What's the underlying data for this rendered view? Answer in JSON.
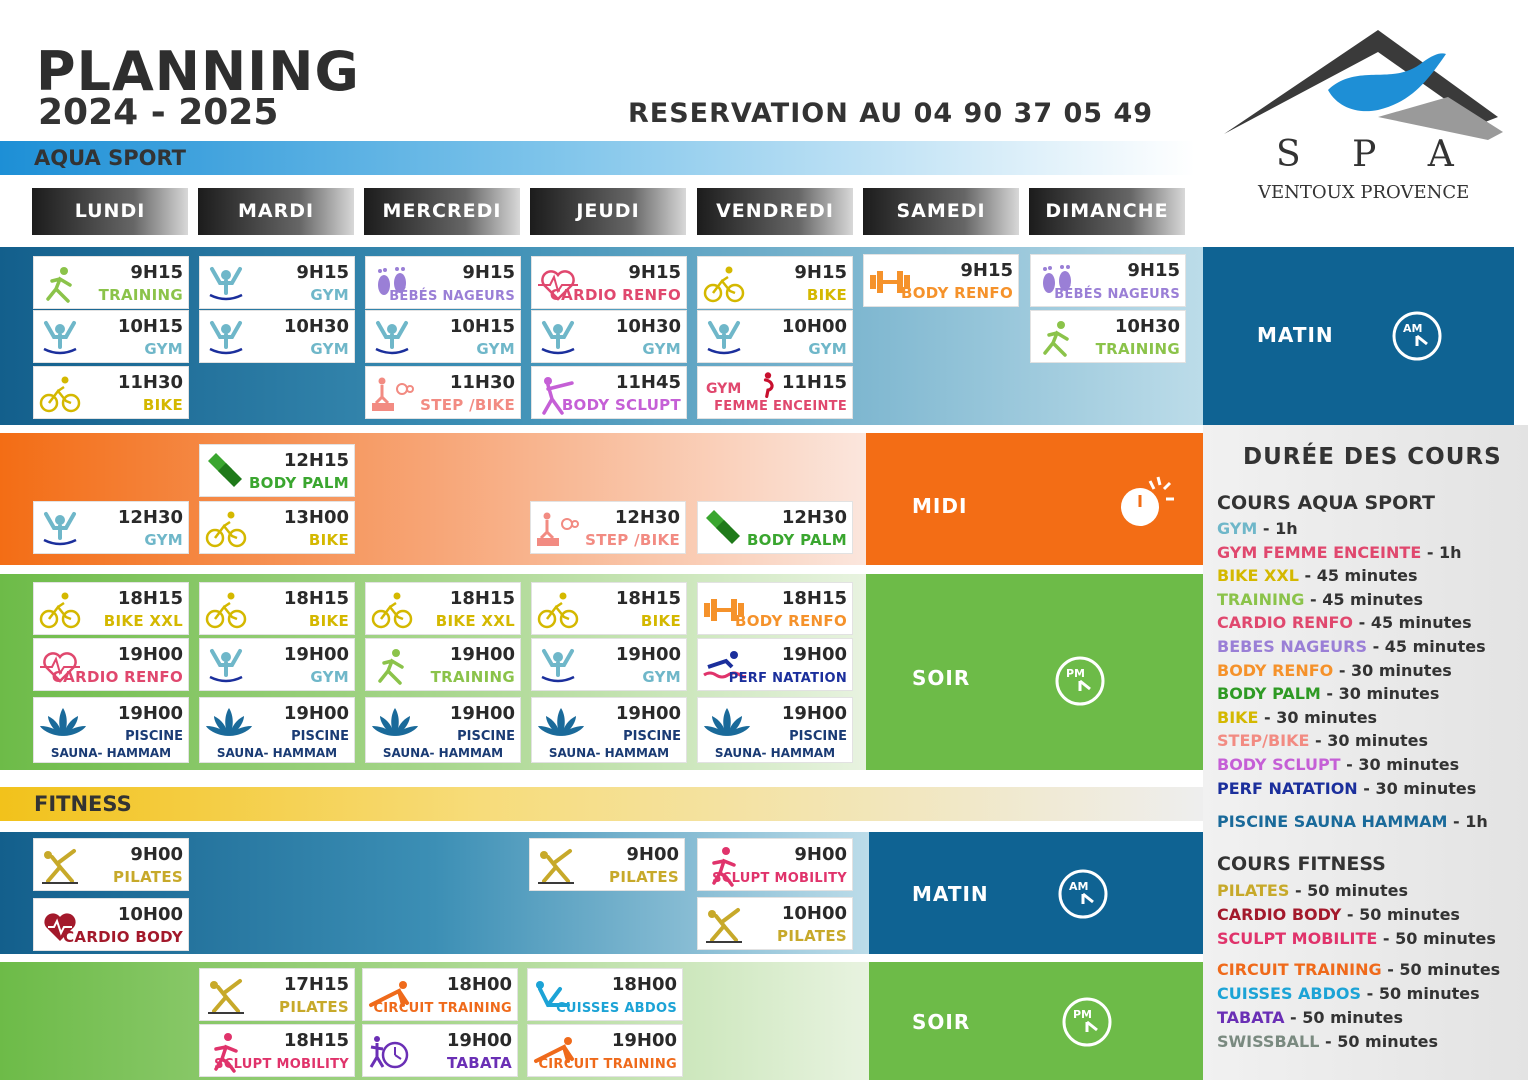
{
  "header": {
    "title": "PLANNING",
    "years": "2024 - 2025",
    "reservation": "RESERVATION AU 04 90 37 05 49"
  },
  "logo": {
    "name": "S P A",
    "tagline": "VENTOUX PROVENCE"
  },
  "sections": {
    "aqua": "AQUA SPORT",
    "fitness": "FITNESS"
  },
  "days": [
    "LUNDI",
    "MARDI",
    "MERCREDI",
    "JEUDI",
    "VENDREDI",
    "SAMEDI",
    "DIMANCHE"
  ],
  "periods": {
    "matin": "MATIN",
    "midi": "MIDI",
    "soir": "SOIR",
    "matin2": "MATIN",
    "soir2": "SOIR"
  },
  "clock": {
    "am": "AM",
    "pm": "PM"
  },
  "aqua_cards": [
    {
      "time": "9H15",
      "name": "TRAINING",
      "icon": "runner-icon",
      "color": "#8bc34a"
    },
    {
      "time": "10H15",
      "name": "GYM",
      "icon": "aqua-gym-icon",
      "color": "#6fb7c9"
    },
    {
      "time": "11H30",
      "name": "BIKE",
      "icon": "bike-icon",
      "color": "#d4b800"
    },
    {
      "time": "9H15",
      "name": "GYM",
      "icon": "aqua-gym-icon",
      "color": "#6fb7c9"
    },
    {
      "time": "10H30",
      "name": "GYM",
      "icon": "aqua-gym-icon",
      "color": "#6fb7c9"
    },
    {
      "time": "9H15",
      "name": "BÉBÉS NAGEURS",
      "icon": "baby-feet-icon",
      "color": "#9a7fd6"
    },
    {
      "time": "10H15",
      "name": "GYM",
      "icon": "aqua-gym-icon",
      "color": "#6fb7c9"
    },
    {
      "time": "11H30",
      "name": "STEP /BIKE",
      "icon": "step-bike-icon",
      "color": "#f28b82"
    },
    {
      "time": "9H15",
      "name": "CARDIO RENFO",
      "icon": "heart-pulse-icon",
      "color": "#e0486e"
    },
    {
      "time": "10H30",
      "name": "GYM",
      "icon": "aqua-gym-icon",
      "color": "#6fb7c9"
    },
    {
      "time": "11H45",
      "name": "BODY SCLUPT",
      "icon": "stretch-icon",
      "color": "#c55fd6"
    },
    {
      "time": "9H15",
      "name": "BIKE",
      "icon": "bike-icon",
      "color": "#d4b800"
    },
    {
      "time": "10H00",
      "name": "GYM",
      "icon": "aqua-gym-icon",
      "color": "#6fb7c9"
    },
    {
      "time": "11H15",
      "name": "FEMME ENCEINTE",
      "prefix": "GYM",
      "icon": "pregnant-icon",
      "color": "#e0486e"
    },
    {
      "time": "9H15",
      "name": "BODY RENFO",
      "icon": "dumbbell-icon",
      "color": "#f5922b"
    },
    {
      "time": "9H15",
      "name": "BÉBÉS NAGEURS",
      "icon": "baby-feet-icon",
      "color": "#9a7fd6"
    },
    {
      "time": "10H30",
      "name": "TRAINING",
      "icon": "runner-icon",
      "color": "#8bc34a"
    },
    {
      "time": "12H15",
      "name": "BODY PALM",
      "icon": "fins-icon",
      "color": "#3aa62f"
    },
    {
      "time": "12H30",
      "name": "GYM",
      "icon": "aqua-gym-icon",
      "color": "#6fb7c9"
    },
    {
      "time": "13H00",
      "name": "BIKE",
      "icon": "bike-icon",
      "color": "#d4b800"
    },
    {
      "time": "12H30",
      "name": "STEP /BIKE",
      "icon": "step-bike-icon",
      "color": "#f28b82"
    },
    {
      "time": "12H30",
      "name": "BODY PALM",
      "icon": "fins-icon",
      "color": "#3aa62f"
    },
    {
      "time": "18H15",
      "name": "BIKE XXL",
      "icon": "bike-icon",
      "color": "#d4b800"
    },
    {
      "time": "19H00",
      "name": "CARDIO RENFO",
      "icon": "heart-pulse-icon",
      "color": "#e0486e"
    },
    {
      "time": "18H15",
      "name": "BIKE",
      "icon": "bike-icon",
      "color": "#d4b800"
    },
    {
      "time": "19H00",
      "name": "GYM",
      "icon": "aqua-gym-icon",
      "color": "#6fb7c9"
    },
    {
      "time": "18H15",
      "name": "BIKE XXL",
      "icon": "bike-icon",
      "color": "#d4b800"
    },
    {
      "time": "19H00",
      "name": "TRAINING",
      "icon": "runner-icon",
      "color": "#8bc34a"
    },
    {
      "time": "18H15",
      "name": "BIKE",
      "icon": "bike-icon",
      "color": "#d4b800"
    },
    {
      "time": "19H00",
      "name": "GYM",
      "icon": "aqua-gym-icon",
      "color": "#6fb7c9"
    },
    {
      "time": "18H15",
      "name": "BODY RENFO",
      "icon": "dumbbell-icon",
      "color": "#f5922b"
    },
    {
      "time": "19H00",
      "name": "PERF NATATION",
      "icon": "swimmer-icon",
      "color": "#1b2f9c"
    }
  ],
  "spa_card": {
    "time": "19H00",
    "line1": "PISCINE",
    "line2": "SAUNA- HAMMAM",
    "icon": "lotus-icon"
  },
  "fitness_cards": [
    {
      "time": "9H00",
      "name": "PILATES",
      "icon": "pilates-icon",
      "color": "#c7a92a"
    },
    {
      "time": "10H00",
      "name": "CARDIO BODY",
      "icon": "heart-icon",
      "color": "#a3192b"
    },
    {
      "time": "9H00",
      "name": "PILATES",
      "icon": "pilates-icon",
      "color": "#c7a92a"
    },
    {
      "time": "9H00",
      "name": "SCLUPT MOBILITY",
      "icon": "runner-red-icon",
      "color": "#e0336b"
    },
    {
      "time": "10H00",
      "name": "PILATES",
      "icon": "pilates-icon",
      "color": "#c7a92a"
    },
    {
      "time": "17H15",
      "name": "PILATES",
      "icon": "pilates-icon",
      "color": "#c7a92a"
    },
    {
      "time": "18H15",
      "name": "SCLUPT MOBILITY",
      "icon": "runner-red-icon",
      "color": "#e0336b"
    },
    {
      "time": "18H00",
      "name": "CIRCUIT TRAINING",
      "icon": "pushup-icon",
      "color": "#ef6a1b"
    },
    {
      "time": "19H00",
      "name": "TABATA",
      "icon": "tabata-icon",
      "color": "#6a2fb5"
    },
    {
      "time": "18H00",
      "name": "CUISSES ABDOS",
      "icon": "abs-icon",
      "color": "#1ca3d6"
    },
    {
      "time": "19H00",
      "name": "CIRCUIT TRAINING",
      "icon": "pushup-icon",
      "color": "#ef6a1b"
    }
  ],
  "durations": {
    "title": "DURÉE DES COURS",
    "aqua_title": "COURS AQUA SPORT",
    "aqua": [
      {
        "name": "GYM",
        "dur": " - 1h",
        "color": "#6fb7c9"
      },
      {
        "name": "GYM FEMME ENCEINTE",
        "dur": " - 1h",
        "color": "#e0486e"
      },
      {
        "name": "BIKE XXL",
        "dur": " - 45 minutes",
        "color": "#d4b800"
      },
      {
        "name": "TRAINING",
        "dur": " - 45 minutes",
        "color": "#8bc34a"
      },
      {
        "name": "CARDIO RENFO",
        "dur": " - 45 minutes",
        "color": "#e0486e"
      },
      {
        "name": "BEBES NAGEURS",
        "dur": " - 45 minutes",
        "color": "#9a7fd6"
      },
      {
        "name": "BODY RENFO",
        "dur": " - 30 minutes",
        "color": "#f5922b"
      },
      {
        "name": "BODY PALM",
        "dur": " - 30 minutes",
        "color": "#2e9a24"
      },
      {
        "name": "BIKE",
        "dur": " - 30 minutes",
        "color": "#d4b800"
      },
      {
        "name": "STEP/BIKE",
        "dur": " - 30 minutes",
        "color": "#f28b82"
      },
      {
        "name": "BODY SCLUPT",
        "dur": " - 30 minutes",
        "color": "#c55fd6"
      },
      {
        "name": "PERF NATATION",
        "dur": " - 30 minutes",
        "color": "#1b2f9c"
      },
      {
        "name": "PISCINE SAUNA HAMMAM",
        "dur": " - 1h",
        "color": "#1a6a9a"
      }
    ],
    "fitness_title": "COURS FITNESS",
    "fitness": [
      {
        "name": "PILATES",
        "dur": " - 50 minutes",
        "color": "#c7a92a"
      },
      {
        "name": "CARDIO BODY",
        "dur": " - 50 minutes",
        "color": "#a3192b"
      },
      {
        "name": "SCULPT MOBILITE",
        "dur": " - 50 minutes",
        "color": "#e0336b"
      },
      {
        "name": "CIRCUIT TRAINING",
        "dur": " - 50 minutes",
        "color": "#ef6a1b"
      },
      {
        "name": "CUISSES ABDOS",
        "dur": " - 50 minutes",
        "color": "#1ca3d6"
      },
      {
        "name": "TABATA",
        "dur": " - 50 minutes",
        "color": "#6a2fb5"
      },
      {
        "name": "SWISSBALL",
        "dur": " - 50 minutes",
        "color": "#7a8a80"
      }
    ]
  }
}
